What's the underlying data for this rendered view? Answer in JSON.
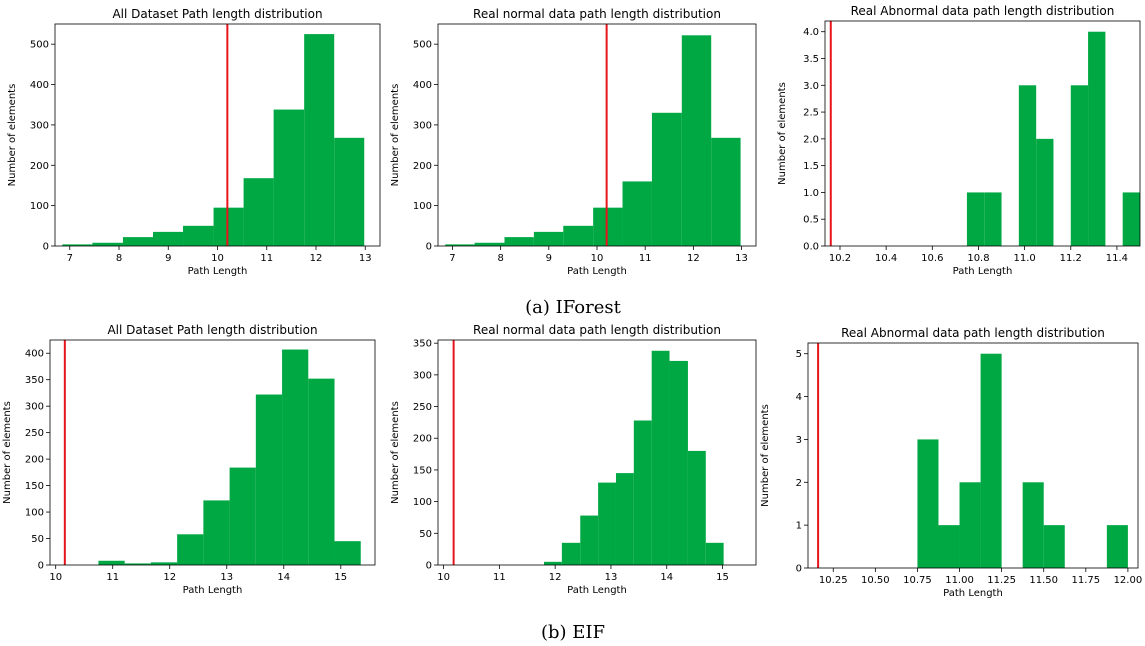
{
  "colors": {
    "bar": "#00a843",
    "threshold": "#e8141c",
    "axis": "#000000"
  },
  "captions": [
    "(a) IForest",
    "(b) EIF"
  ],
  "chart_data": [
    {
      "type": "bar",
      "title": "All Dataset Path length distribution",
      "xlabel": "Path Length",
      "ylabel": "Number of elements",
      "xlim": [
        6.7,
        13.3
      ],
      "ylim": [
        0,
        550
      ],
      "xticks": [
        7,
        8,
        9,
        10,
        11,
        12,
        13
      ],
      "yticks": [
        0,
        100,
        200,
        300,
        400,
        500
      ],
      "bin_edges": [
        6.85,
        7.46,
        8.08,
        8.69,
        9.3,
        9.92,
        10.53,
        11.14,
        11.76,
        12.37,
        12.98
      ],
      "values": [
        4,
        8,
        22,
        35,
        50,
        95,
        168,
        338,
        525,
        268
      ],
      "threshold_x": 10.2
    },
    {
      "type": "bar",
      "title": "Real normal data path length distribution",
      "xlabel": "Path Length",
      "ylabel": "Number of elements",
      "xlim": [
        6.7,
        13.3
      ],
      "ylim": [
        0,
        550
      ],
      "xticks": [
        7,
        8,
        9,
        10,
        11,
        12,
        13
      ],
      "yticks": [
        0,
        100,
        200,
        300,
        400,
        500
      ],
      "bin_edges": [
        6.85,
        7.46,
        8.08,
        8.69,
        9.3,
        9.92,
        10.53,
        11.14,
        11.76,
        12.37,
        12.98
      ],
      "values": [
        4,
        8,
        22,
        35,
        50,
        95,
        160,
        330,
        522,
        268
      ],
      "threshold_x": 10.2
    },
    {
      "type": "bar",
      "title": "Real Abnormal data path length distribution",
      "xlabel": "Path Length",
      "ylabel": "Number of elements",
      "xlim": [
        10.135,
        11.5
      ],
      "ylim": [
        0,
        4.2
      ],
      "xticks": [
        "10.2",
        "10.4",
        "10.6",
        "10.8",
        "11.0",
        "11.2",
        "11.4"
      ],
      "yticks": [
        "0.0",
        "0.5",
        "1.0",
        "1.5",
        "2.0",
        "2.5",
        "3.0",
        "3.5",
        "4.0"
      ],
      "bin_edges": [
        10.75,
        10.825,
        10.9,
        10.975,
        11.05,
        11.125,
        11.2,
        11.275,
        11.35,
        11.425,
        11.5
      ],
      "values": [
        1,
        1,
        0,
        3,
        2,
        0,
        3,
        4,
        0,
        1
      ],
      "threshold_x": 10.16
    },
    {
      "type": "bar",
      "title": "All Dataset Path length distribution",
      "xlabel": "Path Length",
      "ylabel": "Number of elements",
      "xlim": [
        9.9,
        15.6
      ],
      "ylim": [
        0,
        425
      ],
      "xticks": [
        10,
        11,
        12,
        13,
        14,
        15
      ],
      "yticks": [
        0,
        50,
        100,
        150,
        200,
        250,
        300,
        350,
        400
      ],
      "bin_edges": [
        10.75,
        11.21,
        11.67,
        12.13,
        12.59,
        13.05,
        13.51,
        13.97,
        14.43,
        14.89,
        15.35
      ],
      "values": [
        8,
        3,
        5,
        58,
        122,
        184,
        322,
        407,
        352,
        45
      ],
      "threshold_x": 10.16
    },
    {
      "type": "bar",
      "title": "Real normal data path length distribution",
      "xlabel": "Path Length",
      "ylabel": "Number of elements",
      "xlim": [
        9.9,
        15.6
      ],
      "ylim": [
        0,
        355
      ],
      "xticks": [
        10,
        11,
        12,
        13,
        14,
        15
      ],
      "yticks": [
        0,
        50,
        100,
        150,
        200,
        250,
        300,
        350
      ],
      "bin_edges": [
        11.8,
        12.12,
        12.45,
        12.77,
        13.09,
        13.41,
        13.73,
        14.05,
        14.38,
        14.7,
        15.02,
        15.34
      ],
      "values": [
        5,
        35,
        78,
        130,
        145,
        228,
        338,
        322,
        180,
        35,
        0
      ],
      "threshold_x": 10.18
    },
    {
      "type": "bar",
      "title": "Real Abnormal data path length distribution",
      "xlabel": "Path Length",
      "ylabel": "Number of elements",
      "xlim": [
        10.1,
        12.06
      ],
      "ylim": [
        0,
        5.25
      ],
      "xticks": [
        "10.25",
        "10.50",
        "10.75",
        "11.00",
        "11.25",
        "11.50",
        "11.75",
        "12.00"
      ],
      "yticks": [
        "0",
        "1",
        "2",
        "3",
        "4",
        "5"
      ],
      "bin_edges": [
        10.75,
        10.875,
        11.0,
        11.125,
        11.25,
        11.375,
        11.5,
        11.625,
        11.75,
        11.875,
        12.0
      ],
      "values": [
        3,
        1,
        2,
        5,
        0,
        2,
        1,
        0,
        0,
        1
      ],
      "threshold_x": 10.16
    }
  ]
}
